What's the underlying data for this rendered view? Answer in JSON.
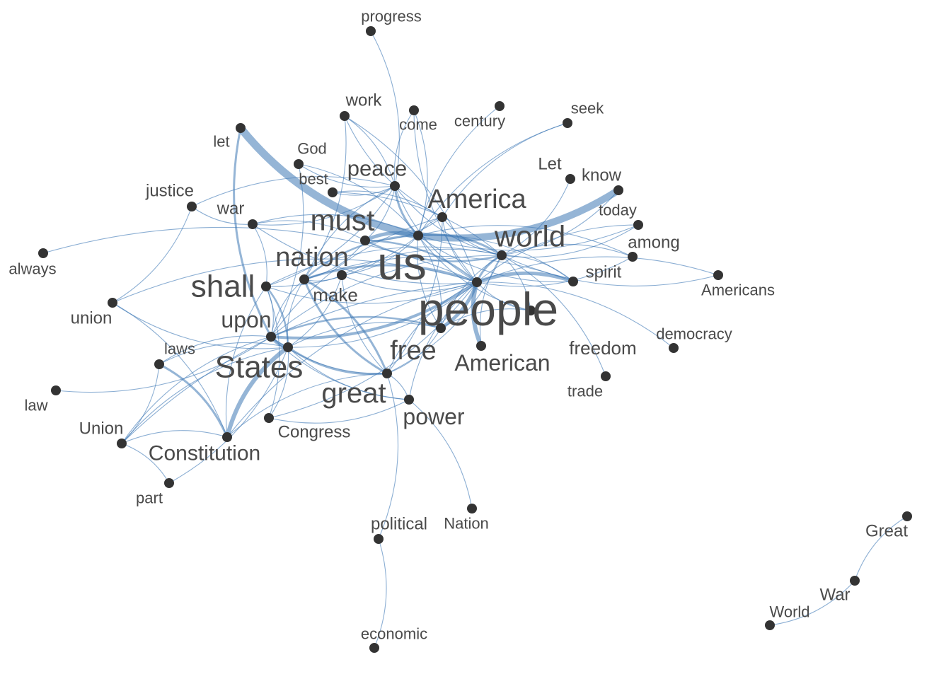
{
  "graph": {
    "colors": {
      "edge": "#3e78b5",
      "node": "#333333",
      "label": "#4a4a4a",
      "background": "#ffffff"
    },
    "nodes": [
      {
        "id": "progress",
        "label": "progress"
      },
      {
        "id": "work",
        "label": "work"
      },
      {
        "id": "come",
        "label": "come"
      },
      {
        "id": "century",
        "label": "century"
      },
      {
        "id": "seek",
        "label": "seek"
      },
      {
        "id": "let",
        "label": "let"
      },
      {
        "id": "God",
        "label": "God"
      },
      {
        "id": "best",
        "label": "best"
      },
      {
        "id": "peace",
        "label": "peace"
      },
      {
        "id": "Let",
        "label": "Let"
      },
      {
        "id": "know",
        "label": "know"
      },
      {
        "id": "justice",
        "label": "justice"
      },
      {
        "id": "war",
        "label": "war"
      },
      {
        "id": "America",
        "label": "America"
      },
      {
        "id": "today",
        "label": "today"
      },
      {
        "id": "must",
        "label": "must"
      },
      {
        "id": "world",
        "label": "world"
      },
      {
        "id": "among",
        "label": "among"
      },
      {
        "id": "always",
        "label": "always"
      },
      {
        "id": "nation",
        "label": "nation"
      },
      {
        "id": "us",
        "label": "us"
      },
      {
        "id": "spirit",
        "label": "spirit"
      },
      {
        "id": "Americans",
        "label": "Americans"
      },
      {
        "id": "shall",
        "label": "shall"
      },
      {
        "id": "make",
        "label": "make"
      },
      {
        "id": "union",
        "label": "union"
      },
      {
        "id": "people",
        "label": "people"
      },
      {
        "id": "upon",
        "label": "upon"
      },
      {
        "id": "democracy",
        "label": "democracy"
      },
      {
        "id": "freedom",
        "label": "freedom"
      },
      {
        "id": "laws",
        "label": "laws"
      },
      {
        "id": "free",
        "label": "free"
      },
      {
        "id": "States",
        "label": "States"
      },
      {
        "id": "American",
        "label": "American"
      },
      {
        "id": "trade",
        "label": "trade"
      },
      {
        "id": "law",
        "label": "law"
      },
      {
        "id": "great",
        "label": "great"
      },
      {
        "id": "power",
        "label": "power"
      },
      {
        "id": "Union",
        "label": "Union"
      },
      {
        "id": "Congress",
        "label": "Congress"
      },
      {
        "id": "Constitution",
        "label": "Constitution"
      },
      {
        "id": "part",
        "label": "part"
      },
      {
        "id": "political",
        "label": "political"
      },
      {
        "id": "Nation",
        "label": "Nation"
      },
      {
        "id": "Great",
        "label": "Great"
      },
      {
        "id": "War",
        "label": "War"
      },
      {
        "id": "World",
        "label": "World"
      },
      {
        "id": "economic",
        "label": "economic"
      }
    ],
    "edges": [
      [
        "let",
        "us"
      ],
      [
        "us",
        "know"
      ],
      [
        "people",
        "American"
      ],
      [
        "us",
        "must"
      ],
      [
        "free",
        "people"
      ],
      [
        "States",
        "upon"
      ],
      [
        "States",
        "Constitution"
      ],
      [
        "people",
        "spirit"
      ],
      [
        "let",
        "upon"
      ],
      [
        "upon",
        "people"
      ],
      [
        "great",
        "nation"
      ],
      [
        "nation",
        "people"
      ],
      [
        "us",
        "world"
      ],
      [
        "us",
        "peace"
      ],
      [
        "us",
        "make"
      ],
      [
        "us",
        "America"
      ],
      [
        "us",
        "nation"
      ],
      [
        "us",
        "shall"
      ],
      [
        "us",
        "free"
      ],
      [
        "us",
        "spirit"
      ],
      [
        "us",
        "among"
      ],
      [
        "us",
        "today"
      ],
      [
        "us",
        "seek"
      ],
      [
        "us",
        "century"
      ],
      [
        "must",
        "world"
      ],
      [
        "must",
        "nation"
      ],
      [
        "must",
        "peace"
      ],
      [
        "must",
        "America"
      ],
      [
        "must",
        "war"
      ],
      [
        "must",
        "people"
      ],
      [
        "world",
        "peace"
      ],
      [
        "world",
        "America"
      ],
      [
        "world",
        "people"
      ],
      [
        "world",
        "freedom"
      ],
      [
        "world",
        "trade"
      ],
      [
        "world",
        "Americans"
      ],
      [
        "world",
        "among"
      ],
      [
        "world",
        "today"
      ],
      [
        "world",
        "Let"
      ],
      [
        "world",
        "know"
      ],
      [
        "America",
        "people"
      ],
      [
        "America",
        "seek"
      ],
      [
        "peace",
        "work"
      ],
      [
        "peace",
        "come"
      ],
      [
        "peace",
        "God"
      ],
      [
        "peace",
        "best"
      ],
      [
        "peace",
        "war"
      ],
      [
        "peace",
        "justice"
      ],
      [
        "peace",
        "progress"
      ],
      [
        "peace",
        "nation"
      ],
      [
        "peace",
        "people"
      ],
      [
        "peace",
        "shall"
      ],
      [
        "work",
        "nation"
      ],
      [
        "work",
        "people"
      ],
      [
        "work",
        "America"
      ],
      [
        "come",
        "people"
      ],
      [
        "come",
        "us"
      ],
      [
        "God",
        "us"
      ],
      [
        "God",
        "upon"
      ],
      [
        "best",
        "America"
      ],
      [
        "best",
        "world"
      ],
      [
        "justice",
        "war"
      ],
      [
        "justice",
        "union"
      ],
      [
        "war",
        "shall"
      ],
      [
        "war",
        "people"
      ],
      [
        "war",
        "us"
      ],
      [
        "always",
        "people"
      ],
      [
        "union",
        "Constitution"
      ],
      [
        "union",
        "States"
      ],
      [
        "union",
        "people"
      ],
      [
        "shall",
        "upon"
      ],
      [
        "shall",
        "people"
      ],
      [
        "shall",
        "States"
      ],
      [
        "shall",
        "Congress"
      ],
      [
        "shall",
        "Constitution"
      ],
      [
        "shall",
        "world"
      ],
      [
        "nation",
        "make"
      ],
      [
        "nation",
        "upon"
      ],
      [
        "nation",
        "great"
      ],
      [
        "nation",
        "States"
      ],
      [
        "nation",
        "spirit"
      ],
      [
        "make",
        "States"
      ],
      [
        "make",
        "people"
      ],
      [
        "make",
        "great"
      ],
      [
        "make",
        "world"
      ],
      [
        "upon",
        "free"
      ],
      [
        "upon",
        "great"
      ],
      [
        "upon",
        "Union"
      ],
      [
        "upon",
        "power"
      ],
      [
        "upon",
        "laws"
      ],
      [
        "upon",
        "law"
      ],
      [
        "upon",
        "world"
      ],
      [
        "upon",
        "America"
      ],
      [
        "States",
        "great"
      ],
      [
        "States",
        "Congress"
      ],
      [
        "States",
        "power"
      ],
      [
        "States",
        "Union"
      ],
      [
        "States",
        "people"
      ],
      [
        "States",
        "free"
      ],
      [
        "States",
        "laws"
      ],
      [
        "laws",
        "Union"
      ],
      [
        "laws",
        "Constitution"
      ],
      [
        "Union",
        "Constitution"
      ],
      [
        "Union",
        "part"
      ],
      [
        "Union",
        "people"
      ],
      [
        "part",
        "States"
      ],
      [
        "Constitution",
        "people"
      ],
      [
        "Constitution",
        "great"
      ],
      [
        "Congress",
        "power"
      ],
      [
        "Congress",
        "people"
      ],
      [
        "great",
        "free"
      ],
      [
        "great",
        "power"
      ],
      [
        "great",
        "political"
      ],
      [
        "great",
        "people"
      ],
      [
        "great",
        "America"
      ],
      [
        "great",
        "world"
      ],
      [
        "power",
        "Nation"
      ],
      [
        "power",
        "people"
      ],
      [
        "free",
        "freedom"
      ],
      [
        "free",
        "world"
      ],
      [
        "American",
        "world"
      ],
      [
        "people",
        "freedom"
      ],
      [
        "people",
        "democracy"
      ],
      [
        "people",
        "among"
      ],
      [
        "people",
        "today"
      ],
      [
        "people",
        "Americans"
      ],
      [
        "political",
        "economic"
      ],
      [
        "Great",
        "War"
      ],
      [
        "War",
        "World"
      ],
      [
        "spirit",
        "us"
      ],
      [
        "spirit",
        "world"
      ],
      [
        "freedom",
        "us"
      ],
      [
        "free",
        "us"
      ]
    ]
  }
}
